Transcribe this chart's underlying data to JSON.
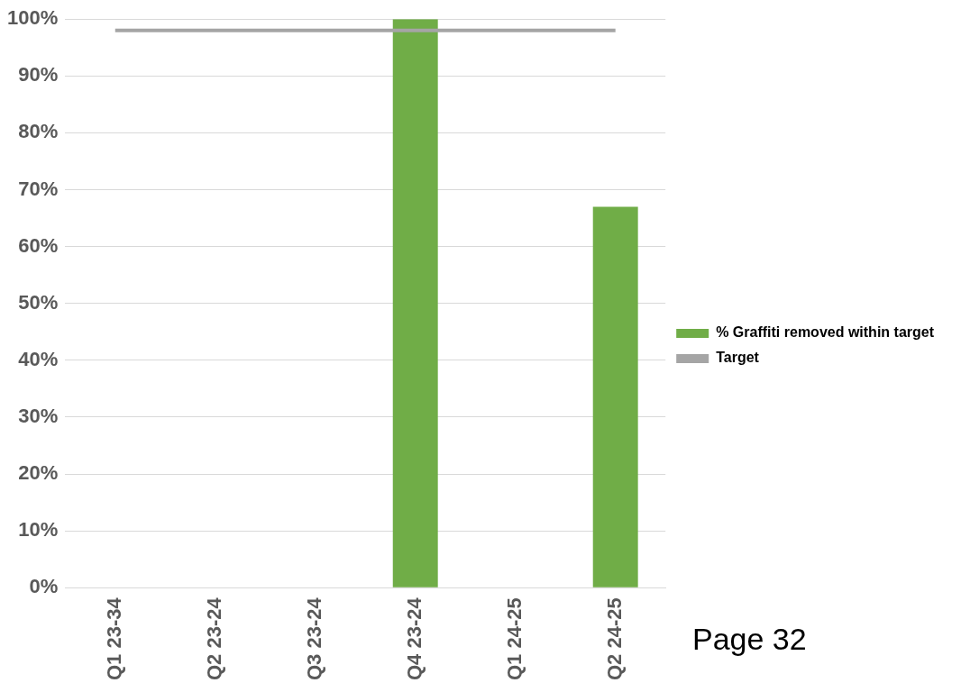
{
  "chart_data": {
    "type": "bar",
    "categories": [
      "Q1 23-34",
      "Q2 23-24",
      "Q3 23-24",
      "Q4 23-24",
      "Q1 24-25",
      "Q2 24-25"
    ],
    "series": [
      {
        "name": "% Graffiti removed within target",
        "color": "#70ad47",
        "values": [
          null,
          null,
          null,
          100,
          null,
          67
        ]
      },
      {
        "name": "Target",
        "type": "line",
        "color": "#a5a5a5",
        "values": [
          98,
          98,
          98,
          98,
          98,
          98
        ]
      }
    ],
    "ylim": [
      0,
      100
    ],
    "yticks": [
      {
        "value": 0,
        "label": "0%"
      },
      {
        "value": 10,
        "label": "10%"
      },
      {
        "value": 20,
        "label": "20%"
      },
      {
        "value": 30,
        "label": "30%"
      },
      {
        "value": 40,
        "label": "40%"
      },
      {
        "value": 50,
        "label": "50%"
      },
      {
        "value": 60,
        "label": "60%"
      },
      {
        "value": 70,
        "label": "70%"
      },
      {
        "value": 80,
        "label": "80%"
      },
      {
        "value": 90,
        "label": "90%"
      },
      {
        "value": 100,
        "label": "100%"
      }
    ],
    "grid": "y",
    "legend": "right",
    "marker": "none",
    "annotations": [
      "Page 32"
    ]
  }
}
